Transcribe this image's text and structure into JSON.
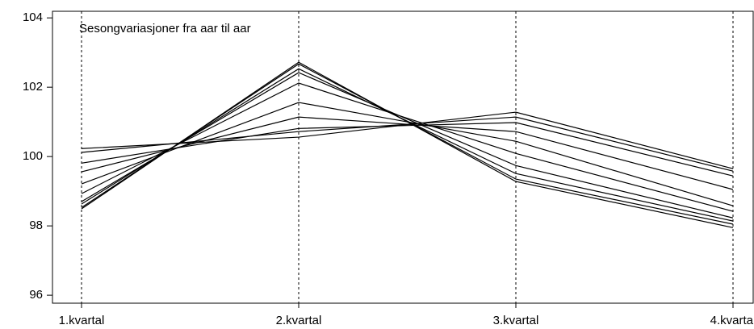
{
  "chart_data": {
    "type": "line",
    "title": "Sesongvariasjoner fra aar til aar",
    "categories": [
      "1.kvartal",
      "2.kvartal",
      "3.kvartal",
      "4.kvartal"
    ],
    "series": [
      {
        "color": "#000000",
        "values": [
          98.49,
          102.72,
          99.28,
          97.95
        ]
      },
      {
        "color": "#000000",
        "values": [
          98.53,
          102.67,
          99.35,
          98.05
        ]
      },
      {
        "color": "#000000",
        "values": [
          98.63,
          102.53,
          99.51,
          98.14
        ]
      },
      {
        "color": "#000000",
        "values": [
          98.7,
          102.42,
          99.74,
          98.23
        ]
      },
      {
        "color": "#000000",
        "values": [
          98.93,
          102.12,
          100.09,
          98.42
        ]
      },
      {
        "color": "#000000",
        "values": [
          99.21,
          101.56,
          100.44,
          98.58
        ]
      },
      {
        "color": "#000000",
        "values": [
          99.56,
          101.14,
          100.72,
          99.05
        ]
      },
      {
        "color": "#000000",
        "values": [
          99.81,
          100.81,
          100.98,
          99.44
        ]
      },
      {
        "color": "#000000",
        "values": [
          100.12,
          100.72,
          101.14,
          99.58
        ]
      },
      {
        "color": "#000000",
        "values": [
          100.23,
          100.56,
          101.28,
          99.65
        ]
      }
    ],
    "ylim": [
      95.77,
      104.19
    ],
    "yticks": [
      96,
      98,
      100,
      102,
      104
    ],
    "vertical_lines": true
  }
}
